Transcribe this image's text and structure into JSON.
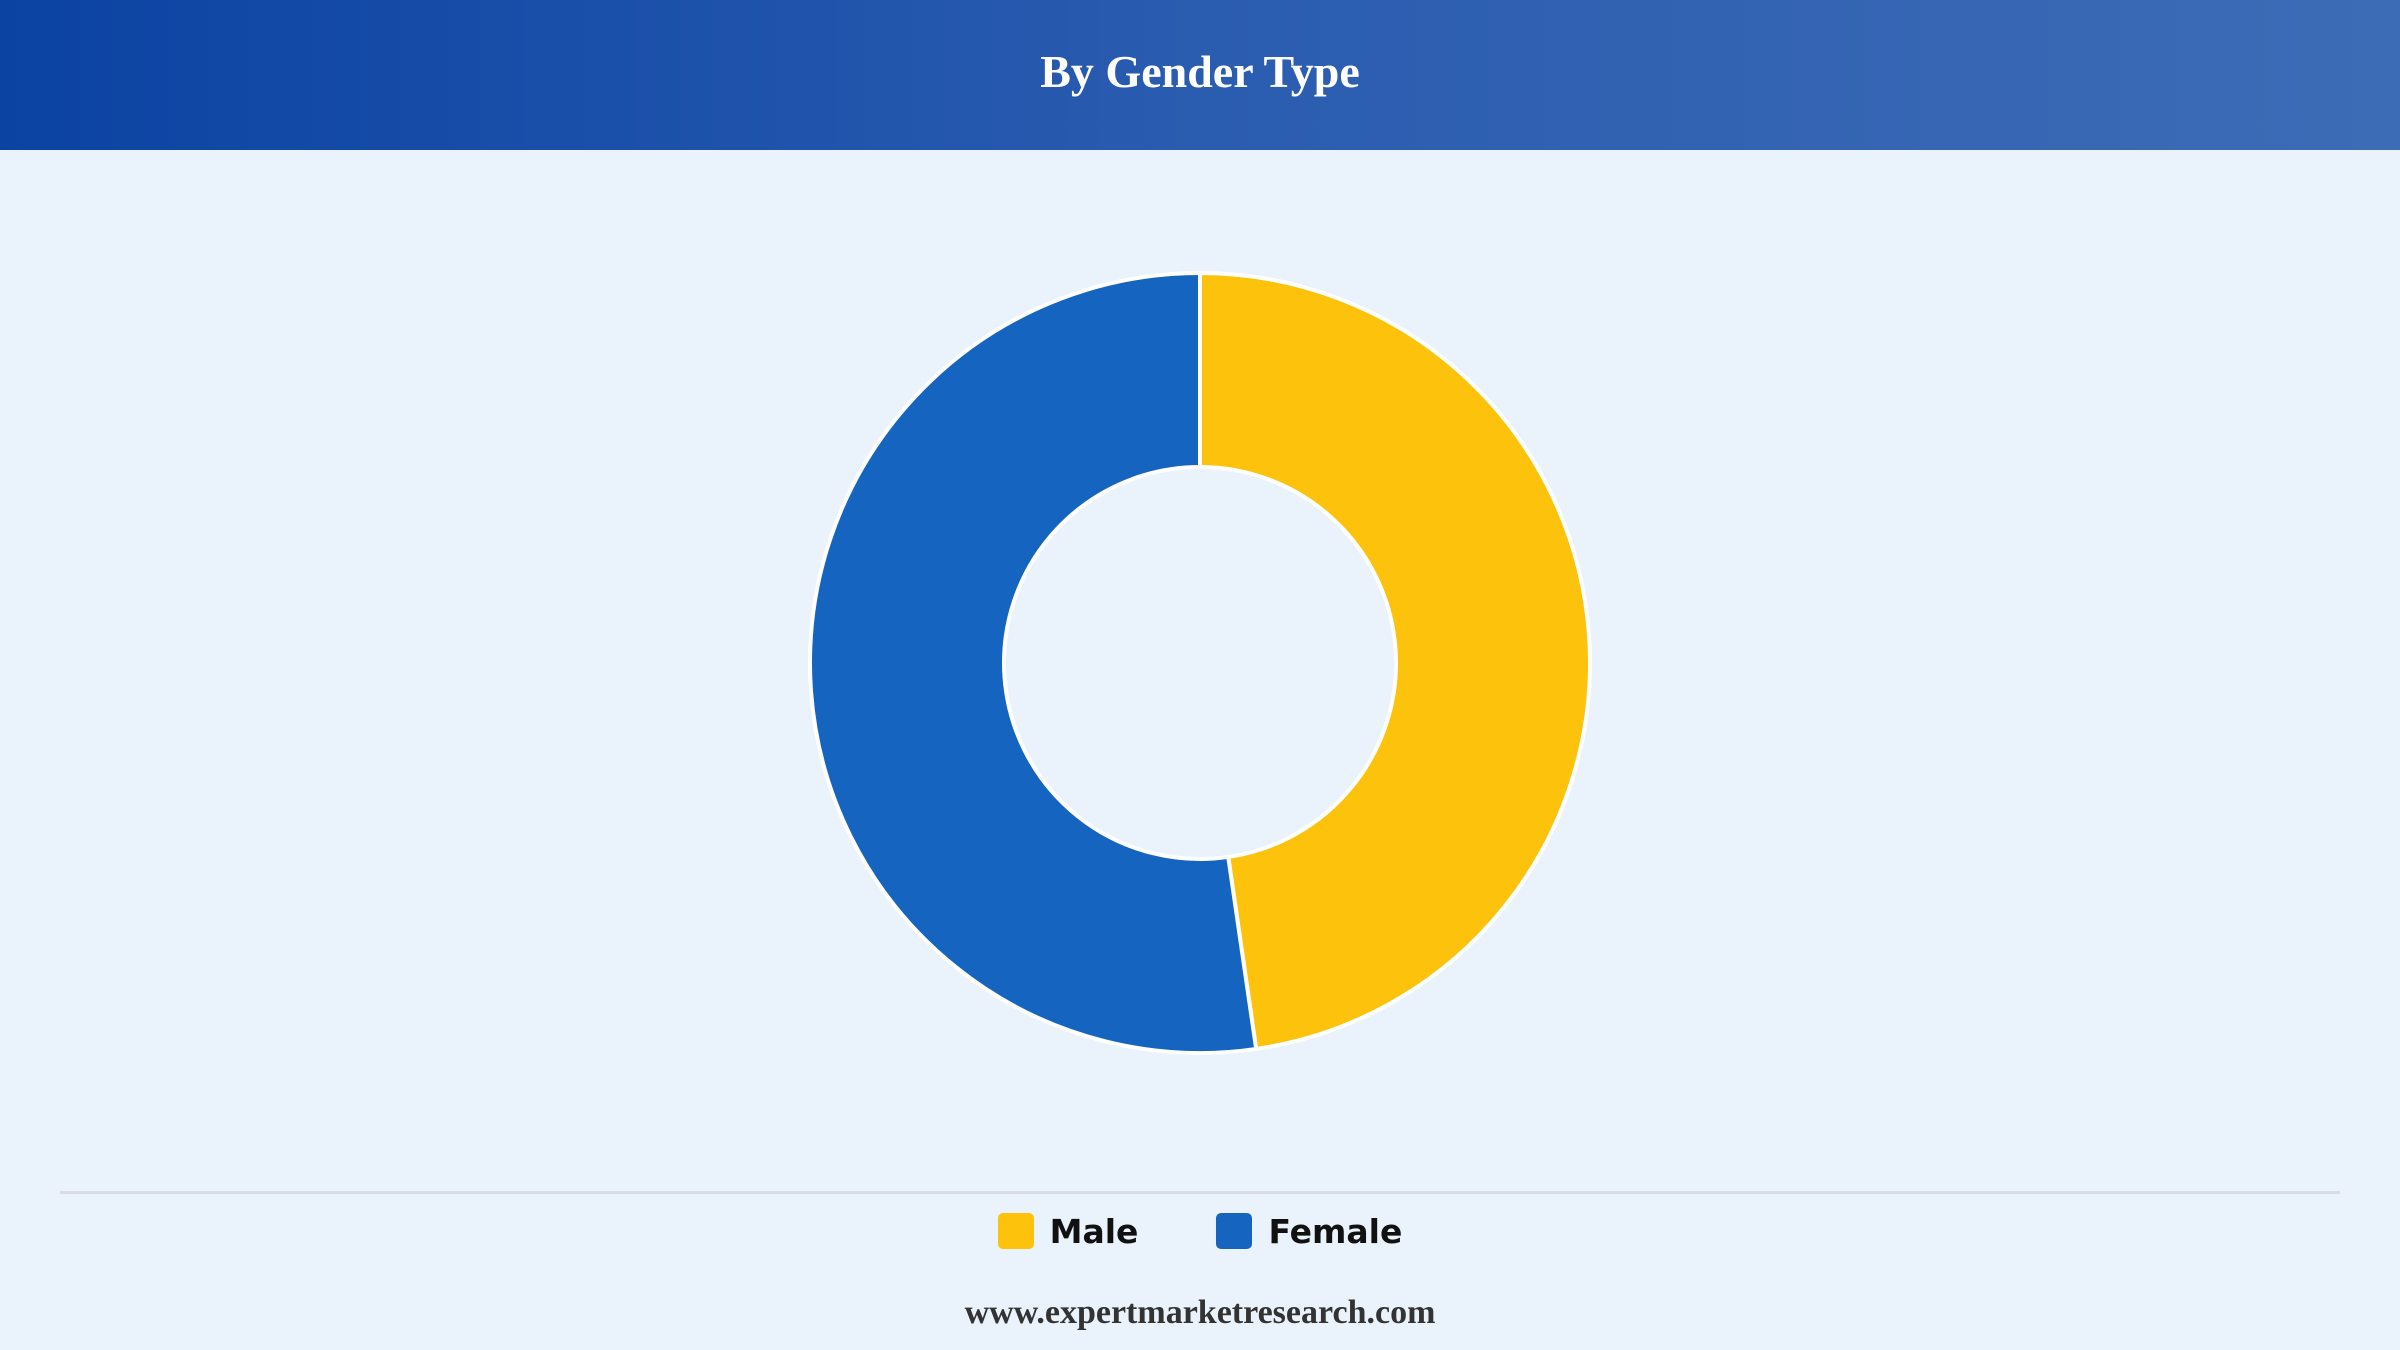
{
  "header": {
    "title": "By Gender Type"
  },
  "colors": {
    "male": "#fdc20b",
    "female": "#1565c0",
    "background": "#eaf2fb"
  },
  "chart_data": {
    "type": "pie",
    "title": "By Gender Type",
    "categories": [
      "Male",
      "Female"
    ],
    "values": [
      47.7,
      52.3
    ],
    "colors": [
      "#fdc20b",
      "#1565c0"
    ],
    "donut": true,
    "legend_position": "bottom-center"
  },
  "legend": {
    "items": [
      {
        "label": "Male",
        "color": "#fdc20b"
      },
      {
        "label": "Female",
        "color": "#1565c0"
      }
    ]
  },
  "footer": {
    "text": "www.expertmarketresearch.com"
  }
}
